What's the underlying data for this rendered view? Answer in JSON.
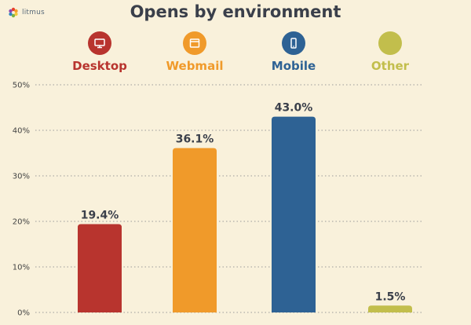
{
  "brand": {
    "name": "litmus",
    "colors": [
      "#e8402e",
      "#f39c2a",
      "#f4c83a",
      "#7cb342",
      "#2e86c1",
      "#8e44ad"
    ]
  },
  "chart_data": {
    "type": "bar",
    "title": "Opens by environment",
    "categories": [
      "Desktop",
      "Webmail",
      "Mobile",
      "Other"
    ],
    "values": [
      19.4,
      36.1,
      43.0,
      1.5
    ],
    "value_labels": [
      "19.4%",
      "36.1%",
      "43.0%",
      "1.5%"
    ],
    "colors": [
      "#b8342e",
      "#f09a2a",
      "#2e6294",
      "#c2be4c"
    ],
    "legend_icons": [
      "desktop-monitor-icon",
      "browser-window-icon",
      "mobile-phone-icon",
      ""
    ],
    "ylim": [
      0,
      50
    ],
    "yticks": [
      0,
      10,
      20,
      30,
      40,
      50
    ],
    "ytick_labels": [
      "0%",
      "10%",
      "20%",
      "30%",
      "40%",
      "50%"
    ],
    "xlabel": "",
    "ylabel": "",
    "grid": true
  }
}
